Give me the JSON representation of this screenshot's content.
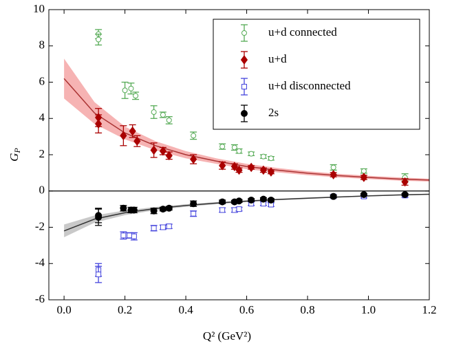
{
  "chart_data": {
    "type": "scatter",
    "xlabel": "Q² (GeV²)",
    "ylabel": {
      "main": "G",
      "sub": "P"
    },
    "xlim": [
      -0.05,
      1.2
    ],
    "ylim": [
      -6,
      10
    ],
    "xticks": [
      {
        "value": 0,
        "label": "0.0"
      },
      0.2,
      0.4,
      0.6,
      0.8,
      {
        "value": 1,
        "label": "1.0"
      },
      1.2
    ],
    "yticks": [
      -6,
      -4,
      -2,
      0,
      2,
      4,
      6,
      8,
      10
    ],
    "zero_line": true,
    "legend": "upper right",
    "series": [
      {
        "name": "u+d connected",
        "color": "#55aa55",
        "marker": "open-circle",
        "x": [
          0.113,
          0.113,
          0.2,
          0.22,
          0.235,
          0.295,
          0.325,
          0.345,
          0.425,
          0.52,
          0.56,
          0.575,
          0.615,
          0.655,
          0.68,
          0.885,
          0.985,
          1.12
        ],
        "values": [
          8.65,
          8.35,
          5.55,
          5.65,
          5.25,
          4.35,
          4.2,
          3.9,
          3.05,
          2.45,
          2.4,
          2.2,
          2.05,
          1.9,
          1.8,
          1.3,
          1.1,
          0.75
        ],
        "errors": [
          0.25,
          0.3,
          0.45,
          0.3,
          0.2,
          0.35,
          0.15,
          0.2,
          0.2,
          0.15,
          0.15,
          0.12,
          0.1,
          0.1,
          0.1,
          0.15,
          0.12,
          0.2
        ]
      },
      {
        "name": "u+d",
        "color": "#aa0000",
        "marker": "diamond",
        "x": [
          0.113,
          0.113,
          0.195,
          0.225,
          0.24,
          0.295,
          0.325,
          0.345,
          0.425,
          0.52,
          0.56,
          0.575,
          0.615,
          0.655,
          0.68,
          0.885,
          0.985,
          1.12
        ],
        "values": [
          4.05,
          3.7,
          3.05,
          3.3,
          2.75,
          2.25,
          2.2,
          1.95,
          1.75,
          1.4,
          1.35,
          1.15,
          1.3,
          1.15,
          1.05,
          0.9,
          0.75,
          0.5
        ],
        "errors": [
          0.5,
          0.5,
          0.55,
          0.35,
          0.3,
          0.4,
          0.2,
          0.2,
          0.25,
          0.2,
          0.15,
          0.12,
          0.1,
          0.12,
          0.1,
          0.12,
          0.12,
          0.18
        ]
      },
      {
        "name": "u+d disconnected",
        "color": "#4444dd",
        "marker": "open-square",
        "x": [
          0.113,
          0.113,
          0.195,
          0.215,
          0.23,
          0.295,
          0.325,
          0.345,
          0.425,
          0.52,
          0.56,
          0.575,
          0.615,
          0.655,
          0.68,
          0.885,
          0.985,
          1.12
        ],
        "values": [
          -4.35,
          -4.6,
          -2.45,
          -2.45,
          -2.5,
          -2.05,
          -2.0,
          -1.95,
          -1.25,
          -1.05,
          -1.05,
          -1.0,
          -0.7,
          -0.7,
          -0.75,
          -0.3,
          -0.3,
          -0.25
        ],
        "errors": [
          0.35,
          0.45,
          0.2,
          0.15,
          0.2,
          0.15,
          0.12,
          0.12,
          0.15,
          0.12,
          0.12,
          0.1,
          0.1,
          0.1,
          0.1,
          0.08,
          0.08,
          0.1
        ]
      },
      {
        "name": "2s",
        "color": "#000000",
        "marker": "circle",
        "x": [
          0.113,
          0.113,
          0.195,
          0.22,
          0.23,
          0.295,
          0.325,
          0.345,
          0.425,
          0.52,
          0.56,
          0.575,
          0.615,
          0.655,
          0.68,
          0.885,
          0.985,
          1.12
        ],
        "values": [
          -1.35,
          -1.45,
          -0.95,
          -1.05,
          -1.05,
          -1.1,
          -1.0,
          -0.95,
          -0.7,
          -0.6,
          -0.6,
          -0.55,
          -0.5,
          -0.45,
          -0.5,
          -0.3,
          -0.2,
          -0.2
        ],
        "errors": [
          0.4,
          0.45,
          0.15,
          0.15,
          0.15,
          0.15,
          0.1,
          0.1,
          0.15,
          0.1,
          0.08,
          0.08,
          0.08,
          0.08,
          0.08,
          0.08,
          0.06,
          0.06
        ]
      }
    ],
    "fits": [
      {
        "color": "#aa3333",
        "band_color": "#f4a0a0",
        "x": [
          0,
          0.1,
          0.2,
          0.3,
          0.4,
          0.5,
          0.6,
          0.7,
          0.8,
          0.9,
          1.0,
          1.1,
          1.2
        ],
        "values": [
          6.2,
          4.3,
          3.2,
          2.5,
          2.0,
          1.65,
          1.35,
          1.15,
          0.98,
          0.85,
          0.75,
          0.66,
          0.6
        ],
        "upper": [
          7.3,
          4.9,
          3.55,
          2.75,
          2.2,
          1.8,
          1.5,
          1.27,
          1.09,
          0.95,
          0.84,
          0.75,
          0.68
        ],
        "lower": [
          5.1,
          3.7,
          2.85,
          2.25,
          1.8,
          1.5,
          1.2,
          1.03,
          0.87,
          0.75,
          0.66,
          0.57,
          0.52
        ]
      },
      {
        "color": "#333333",
        "band_color": "#bbbbbb",
        "x": [
          0,
          0.1,
          0.2,
          0.3,
          0.4,
          0.5,
          0.6,
          0.7,
          0.8,
          0.9,
          1.0,
          1.1,
          1.2
        ],
        "values": [
          -2.2,
          -1.55,
          -1.2,
          -0.97,
          -0.8,
          -0.67,
          -0.56,
          -0.47,
          -0.4,
          -0.33,
          -0.27,
          -0.22,
          -0.18
        ],
        "upper": [
          -1.85,
          -1.35,
          -1.07,
          -0.88,
          -0.73,
          -0.61,
          -0.51,
          -0.43,
          -0.36,
          -0.3,
          -0.24,
          -0.19,
          -0.15
        ],
        "lower": [
          -2.55,
          -1.75,
          -1.33,
          -1.06,
          -0.87,
          -0.73,
          -0.61,
          -0.51,
          -0.44,
          -0.36,
          -0.3,
          -0.25,
          -0.21
        ]
      }
    ]
  }
}
